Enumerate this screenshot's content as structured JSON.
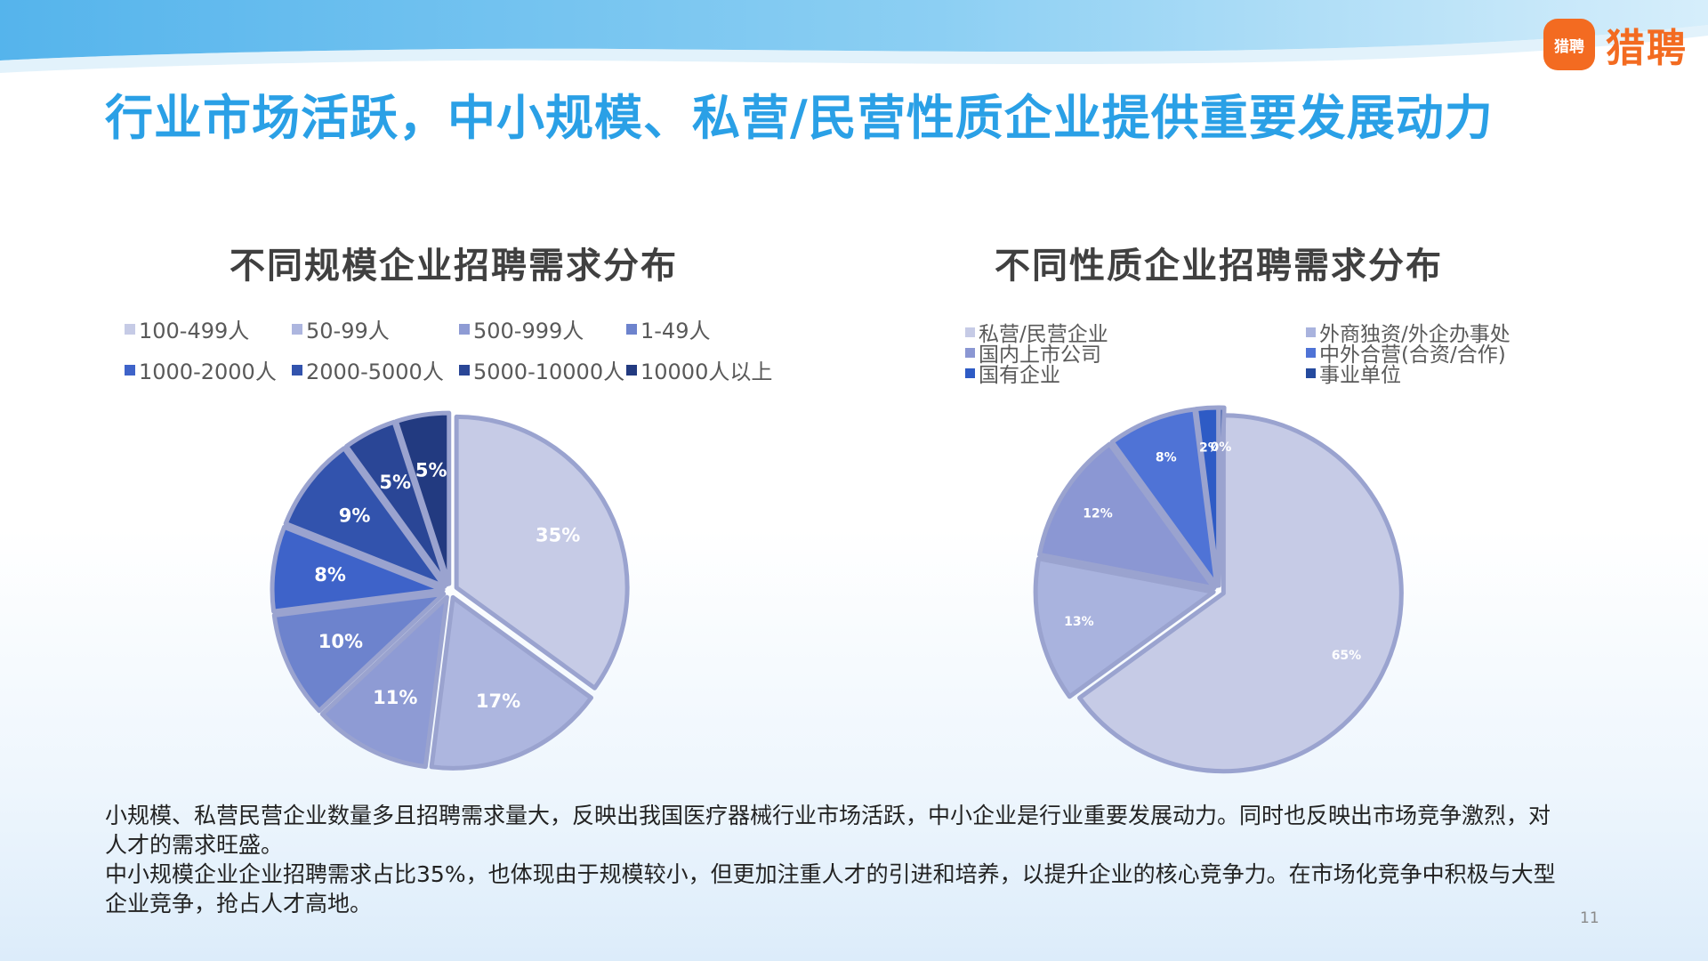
{
  "header": {
    "title": "行业市场活跃，中小规模、私营/民营性质企业提供重要发展动力",
    "logo_mark_text": "猎聘",
    "logo_text": "猎聘"
  },
  "chart_data": [
    {
      "type": "pie",
      "title": "不同规模企业招聘需求分布",
      "legend_position": "top",
      "slices": [
        {
          "label": "100-499人",
          "value": 35,
          "display": "35%",
          "color": "#c6cbe6"
        },
        {
          "label": "50-99人",
          "value": 17,
          "display": "17%",
          "color": "#adb6df"
        },
        {
          "label": "500-999人",
          "value": 11,
          "display": "11%",
          "color": "#8e9bd4"
        },
        {
          "label": "1-49人",
          "value": 10,
          "display": "10%",
          "color": "#6d83cd"
        },
        {
          "label": "1000-2000人",
          "value": 8,
          "display": "8%",
          "color": "#3e63c9"
        },
        {
          "label": "2000-5000人",
          "value": 9,
          "display": "9%",
          "color": "#3253ad"
        },
        {
          "label": "5000-10000人",
          "value": 5,
          "display": "5%",
          "color": "#2a4696"
        },
        {
          "label": "10000人以上",
          "value": 5,
          "display": "5%",
          "color": "#223a80"
        }
      ]
    },
    {
      "type": "pie",
      "title": "不同性质企业招聘需求分布",
      "legend_position": "top",
      "slices": [
        {
          "label": "私营/民营企业",
          "value": 65,
          "display": "65%",
          "color": "#c6cbe6"
        },
        {
          "label": "外商独资/外企办事处",
          "value": 13,
          "display": "13%",
          "color": "#a9b3de"
        },
        {
          "label": "国内上市公司",
          "value": 12,
          "display": "12%",
          "color": "#8b97d3"
        },
        {
          "label": "中外合营(合资/合作)",
          "value": 8,
          "display": "8%",
          "color": "#4f73d6"
        },
        {
          "label": "国有企业",
          "value": 2,
          "display": "2%",
          "color": "#2e5bc5"
        },
        {
          "label": "事业单位",
          "value": 0,
          "display": "0%",
          "color": "#254a9e"
        }
      ]
    }
  ],
  "description": {
    "p1": "小规模、私营民营企业数量多且招聘需求量大，反映出我国医疗器械行业市场活跃，中小企业是行业重要发展动力。同时也反映出市场竞争激烈，对人才的需求旺盛。",
    "p2": "中小规模企业企业招聘需求占比35%，也体现由于规模较小，但更加注重人才的引进和培养，以提升企业的核心竞争力。在市场化竞争中积极与大型企业竞争，抢占人才高地。"
  },
  "page_number": "11"
}
